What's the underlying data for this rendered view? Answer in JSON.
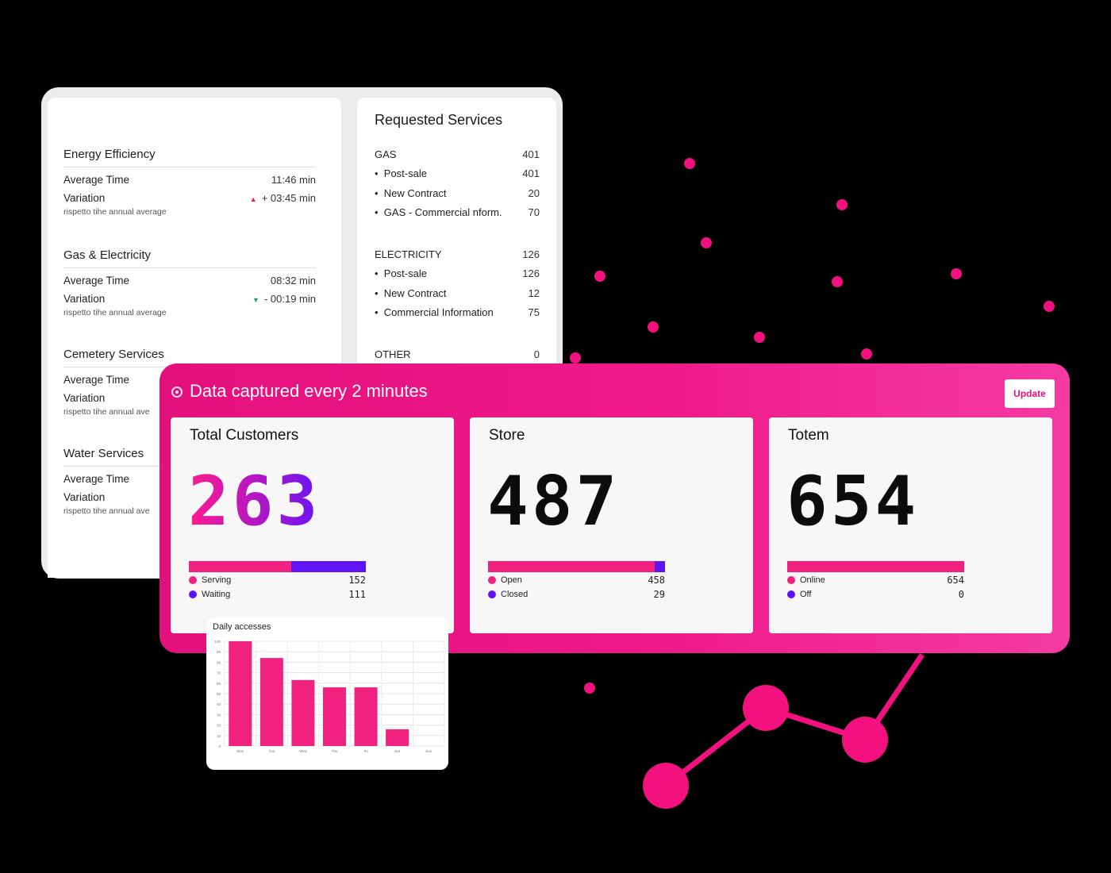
{
  "energy_efficiency": {
    "title": "Energy Efficiency",
    "avg_label": "Average Time",
    "avg_value": "11:46 min",
    "var_label": "Variation",
    "var_value": "+ 03:45 min",
    "sub": "rispetto tihe annual average"
  },
  "gas_electricity": {
    "title": "Gas & Electricity",
    "avg_label": "Average Time",
    "avg_value": "08:32 min",
    "var_label": "Variation",
    "var_value": "- 00:19 min",
    "sub": "rispetto tihe annual average"
  },
  "cemetery": {
    "title": "Cemetery Services",
    "avg_label": "Average Time",
    "var_label": "Variation",
    "sub": "rispetto tihe annual ave"
  },
  "water": {
    "title": "Water Services",
    "avg_label": "Average Time",
    "var_label": "Variation",
    "sub": "rispetto tihe annual ave"
  },
  "requested_services": {
    "title": "Requested Services",
    "gas": {
      "label": "GAS",
      "value": "401",
      "items": [
        {
          "label": "Post-sale",
          "value": "401"
        },
        {
          "label": "New Contract",
          "value": "20"
        },
        {
          "label": "GAS - Commercial nform.",
          "value": "70"
        }
      ]
    },
    "electricity": {
      "label": "ELECTRICITY",
      "value": "126",
      "items": [
        {
          "label": "Post-sale",
          "value": "126"
        },
        {
          "label": "New Contract",
          "value": "12"
        },
        {
          "label": "Commercial Information",
          "value": "75"
        }
      ]
    },
    "other": {
      "label": "OTHER",
      "value": "0"
    }
  },
  "header": {
    "title": "Data captured every 2 minutes",
    "update_label": "Update"
  },
  "total_customers": {
    "title": "Total Customers",
    "value": "263",
    "legend": [
      {
        "label": "Serving",
        "value": "152",
        "color": "#f0217f"
      },
      {
        "label": "Waiting",
        "value": "111",
        "color": "#6014f5"
      }
    ]
  },
  "store": {
    "title": "Store",
    "value": "487",
    "legend": [
      {
        "label": "Open",
        "value": "458",
        "color": "#f0217f"
      },
      {
        "label": "Closed",
        "value": "29",
        "color": "#6014f5"
      }
    ]
  },
  "totem": {
    "title": "Totem",
    "value": "654",
    "legend": [
      {
        "label": "Online",
        "value": "654",
        "color": "#f0217f"
      },
      {
        "label": "Off",
        "value": "0",
        "color": "#6014f5"
      }
    ]
  },
  "chart_data": {
    "type": "bar",
    "title": "Daily accesses",
    "categories": [
      "Mon",
      "Tue",
      "Wed",
      "Thu",
      "Fri",
      "Sat",
      "Sun"
    ],
    "values": [
      100,
      84,
      63,
      56,
      56,
      16,
      0
    ],
    "ylim": [
      0,
      100
    ],
    "yticks": [
      "0",
      "10",
      "20",
      "30",
      "40",
      "50",
      "60",
      "70",
      "80",
      "90",
      "100"
    ],
    "grid": true,
    "color": "#f0217f"
  },
  "colors": {
    "accent_pink": "#e3107d",
    "accent_purple": "#6014f5",
    "up_indicator": "#e0245e",
    "down_indicator": "#1ea36b"
  }
}
